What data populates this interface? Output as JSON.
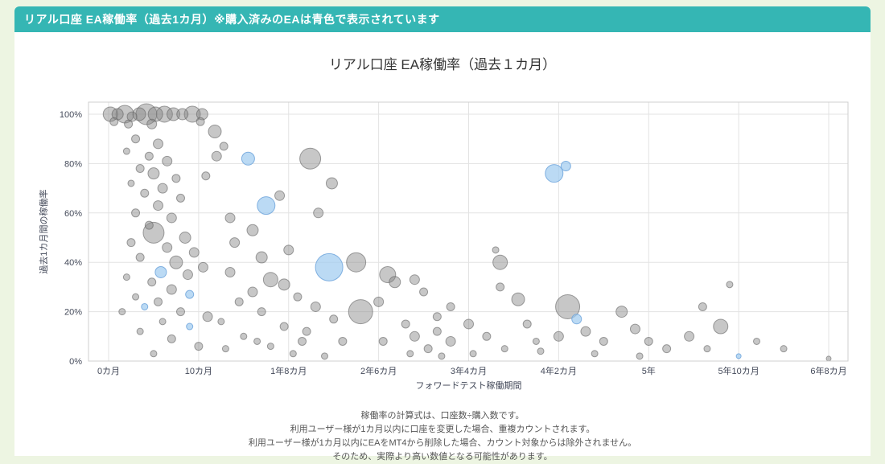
{
  "banner": {
    "text": "リアル口座 EA稼働率（過去1カ月）※購入済みのEAは青色で表示されています"
  },
  "chart_data": {
    "type": "scatter",
    "subtype": "bubble",
    "title": "リアル口座 EA稼働率（過去１カ月）",
    "xlabel": "フォワードテスト稼働期間",
    "ylabel": "過去1カ月間の稼働率",
    "x_tick_labels": [
      "0カ月",
      "10カ月",
      "1年8カ月",
      "2年6カ月",
      "3年4カ月",
      "4年2カ月",
      "5年",
      "5年10カ月",
      "6年8カ月"
    ],
    "x_tick_months": [
      0,
      10,
      20,
      30,
      40,
      50,
      60,
      70,
      80
    ],
    "y_tick_labels": [
      "0%",
      "20%",
      "40%",
      "60%",
      "80%",
      "100%"
    ],
    "y_tick_values": [
      0,
      20,
      40,
      60,
      80,
      100
    ],
    "xlim_months": [
      -2,
      82
    ],
    "ylim_pct": [
      0,
      105
    ],
    "grid": true,
    "blue_meaning": "購入済みのEA",
    "point_format": [
      "months_on_forward_test",
      "operating_rate_pct",
      "bubble_radius_px",
      "color g=gray b=blue"
    ],
    "points": [
      [
        0.2,
        100,
        9,
        "g"
      ],
      [
        1,
        100,
        7,
        "g"
      ],
      [
        1.8,
        100,
        11,
        "g"
      ],
      [
        2.6,
        99,
        6,
        "g"
      ],
      [
        3.4,
        100,
        8,
        "g"
      ],
      [
        4.2,
        100,
        13,
        "g"
      ],
      [
        5.2,
        100,
        9,
        "g"
      ],
      [
        6.2,
        100,
        10,
        "g"
      ],
      [
        7.2,
        100,
        8,
        "g"
      ],
      [
        8.2,
        100,
        7,
        "g"
      ],
      [
        9.3,
        100,
        10,
        "g"
      ],
      [
        10.4,
        100,
        7,
        "g"
      ],
      [
        0.6,
        97,
        5,
        "g"
      ],
      [
        2.2,
        96,
        5,
        "g"
      ],
      [
        4.8,
        96,
        6,
        "g"
      ],
      [
        10.2,
        97,
        5,
        "g"
      ],
      [
        11.8,
        93,
        8,
        "g"
      ],
      [
        3,
        90,
        5,
        "g"
      ],
      [
        5.5,
        88,
        6,
        "g"
      ],
      [
        2,
        85,
        4,
        "g"
      ],
      [
        4.5,
        83,
        5,
        "g"
      ],
      [
        6.5,
        81,
        6,
        "g"
      ],
      [
        3.5,
        78,
        5,
        "g"
      ],
      [
        5,
        76,
        7,
        "g"
      ],
      [
        7.5,
        74,
        5,
        "g"
      ],
      [
        2.5,
        72,
        4,
        "g"
      ],
      [
        6,
        70,
        6,
        "g"
      ],
      [
        4,
        68,
        5,
        "g"
      ],
      [
        8,
        66,
        5,
        "g"
      ],
      [
        10.8,
        75,
        5,
        "g"
      ],
      [
        12,
        83,
        6,
        "g"
      ],
      [
        12.8,
        87,
        5,
        "g"
      ],
      [
        5.5,
        63,
        6,
        "g"
      ],
      [
        3,
        60,
        5,
        "g"
      ],
      [
        7,
        58,
        6,
        "g"
      ],
      [
        4.5,
        55,
        5,
        "g"
      ],
      [
        5,
        52,
        13,
        "g"
      ],
      [
        8.5,
        50,
        7,
        "g"
      ],
      [
        2.5,
        48,
        5,
        "g"
      ],
      [
        6.5,
        46,
        6,
        "g"
      ],
      [
        9.5,
        44,
        6,
        "g"
      ],
      [
        3.5,
        42,
        5,
        "g"
      ],
      [
        7.5,
        40,
        8,
        "g"
      ],
      [
        10.5,
        38,
        6,
        "g"
      ],
      [
        5.8,
        36,
        7,
        "b"
      ],
      [
        8.8,
        35,
        6,
        "g"
      ],
      [
        2,
        34,
        4,
        "g"
      ],
      [
        4.8,
        32,
        5,
        "g"
      ],
      [
        7,
        29,
        6,
        "g"
      ],
      [
        9,
        27,
        5,
        "b"
      ],
      [
        3,
        26,
        4,
        "g"
      ],
      [
        5.5,
        24,
        5,
        "g"
      ],
      [
        4,
        22,
        4,
        "b"
      ],
      [
        8,
        20,
        5,
        "g"
      ],
      [
        11,
        18,
        6,
        "g"
      ],
      [
        6,
        16,
        4,
        "g"
      ],
      [
        9,
        14,
        4,
        "b"
      ],
      [
        3.5,
        12,
        4,
        "g"
      ],
      [
        7,
        9,
        5,
        "g"
      ],
      [
        10,
        6,
        5,
        "g"
      ],
      [
        5,
        3,
        4,
        "g"
      ],
      [
        1.5,
        20,
        4,
        "g"
      ],
      [
        15.5,
        82,
        8,
        "b"
      ],
      [
        22.4,
        82,
        13,
        "g"
      ],
      [
        17.5,
        63,
        11,
        "b"
      ],
      [
        19,
        67,
        6,
        "g"
      ],
      [
        24.8,
        72,
        7,
        "g"
      ],
      [
        23.3,
        60,
        6,
        "g"
      ],
      [
        13.5,
        58,
        6,
        "g"
      ],
      [
        16,
        53,
        7,
        "g"
      ],
      [
        14,
        48,
        6,
        "g"
      ],
      [
        20,
        45,
        6,
        "g"
      ],
      [
        24.5,
        38,
        17,
        "b"
      ],
      [
        27.5,
        40,
        12,
        "g"
      ],
      [
        17,
        42,
        7,
        "g"
      ],
      [
        13.5,
        36,
        6,
        "g"
      ],
      [
        18,
        33,
        9,
        "g"
      ],
      [
        19.5,
        31,
        7,
        "g"
      ],
      [
        16,
        28,
        6,
        "g"
      ],
      [
        21,
        26,
        5,
        "g"
      ],
      [
        14.5,
        24,
        5,
        "g"
      ],
      [
        23,
        22,
        6,
        "g"
      ],
      [
        17,
        20,
        5,
        "g"
      ],
      [
        25,
        17,
        5,
        "g"
      ],
      [
        12.5,
        16,
        4,
        "g"
      ],
      [
        19.5,
        14,
        5,
        "g"
      ],
      [
        22,
        12,
        5,
        "g"
      ],
      [
        15,
        10,
        4,
        "g"
      ],
      [
        26,
        8,
        5,
        "g"
      ],
      [
        18,
        6,
        4,
        "g"
      ],
      [
        20.5,
        3,
        4,
        "g"
      ],
      [
        28,
        20,
        15,
        "g"
      ],
      [
        24,
        2,
        4,
        "g"
      ],
      [
        16.5,
        8,
        4,
        "g"
      ],
      [
        21.5,
        8,
        5,
        "g"
      ],
      [
        13,
        5,
        4,
        "g"
      ],
      [
        31,
        35,
        10,
        "g"
      ],
      [
        31.8,
        32,
        7,
        "g"
      ],
      [
        30,
        24,
        6,
        "g"
      ],
      [
        33,
        15,
        5,
        "g"
      ],
      [
        34,
        10,
        6,
        "g"
      ],
      [
        35.5,
        5,
        5,
        "g"
      ],
      [
        36.5,
        12,
        5,
        "g"
      ],
      [
        38,
        8,
        6,
        "g"
      ],
      [
        40,
        15,
        6,
        "g"
      ],
      [
        42,
        10,
        5,
        "g"
      ],
      [
        43,
        45,
        4,
        "g"
      ],
      [
        43.5,
        40,
        9,
        "g"
      ],
      [
        43.5,
        30,
        5,
        "g"
      ],
      [
        45.5,
        25,
        8,
        "g"
      ],
      [
        40.5,
        3,
        4,
        "g"
      ],
      [
        37,
        2,
        4,
        "g"
      ],
      [
        30.5,
        8,
        5,
        "g"
      ],
      [
        33.5,
        3,
        4,
        "g"
      ],
      [
        46.5,
        15,
        5,
        "g"
      ],
      [
        47.5,
        8,
        4,
        "g"
      ],
      [
        44,
        5,
        4,
        "g"
      ],
      [
        34,
        33,
        6,
        "g"
      ],
      [
        35,
        28,
        5,
        "g"
      ],
      [
        38,
        22,
        5,
        "g"
      ],
      [
        36.5,
        18,
        5,
        "g"
      ],
      [
        49.5,
        76,
        11,
        "b"
      ],
      [
        50.8,
        79,
        6,
        "b"
      ],
      [
        51,
        22,
        15,
        "g"
      ],
      [
        52,
        17,
        6,
        "b"
      ],
      [
        50,
        10,
        6,
        "g"
      ],
      [
        53,
        12,
        6,
        "g"
      ],
      [
        55,
        8,
        5,
        "g"
      ],
      [
        48,
        4,
        4,
        "g"
      ],
      [
        54,
        3,
        4,
        "g"
      ],
      [
        57,
        20,
        7,
        "g"
      ],
      [
        58.5,
        13,
        6,
        "g"
      ],
      [
        60,
        8,
        5,
        "g"
      ],
      [
        62,
        5,
        5,
        "g"
      ],
      [
        64.5,
        10,
        6,
        "g"
      ],
      [
        66,
        22,
        5,
        "g"
      ],
      [
        68,
        14,
        9,
        "g"
      ],
      [
        69,
        31,
        4,
        "g"
      ],
      [
        70,
        2,
        3,
        "b"
      ],
      [
        72,
        8,
        4,
        "g"
      ],
      [
        75,
        5,
        4,
        "g"
      ],
      [
        80,
        1,
        3,
        "g"
      ],
      [
        59,
        2,
        4,
        "g"
      ],
      [
        66.5,
        5,
        4,
        "g"
      ]
    ]
  },
  "footer": {
    "lines": [
      "稼働率の計算式は、口座数÷購入数です。",
      "利用ユーザー様が1カ月以内に口座を変更した場合、重複カウントされます。",
      "利用ユーザー様が1カ月以内にEAをMT4から削除した場合、カウント対象からは除外されません。",
      "そのため、実際より高い数値となる可能性があります。"
    ]
  },
  "colors": {
    "banner_bg": "#35b6b4",
    "page_bg": "#edf5e2",
    "grid": "#e3e3e3",
    "plot_border": "#cfcfcf",
    "gray_fill": "rgba(130,130,130,0.45)",
    "gray_stroke": "rgba(100,100,100,0.6)",
    "blue_fill": "rgba(158,202,240,0.7)",
    "blue_stroke": "rgba(110,165,220,0.85)"
  }
}
